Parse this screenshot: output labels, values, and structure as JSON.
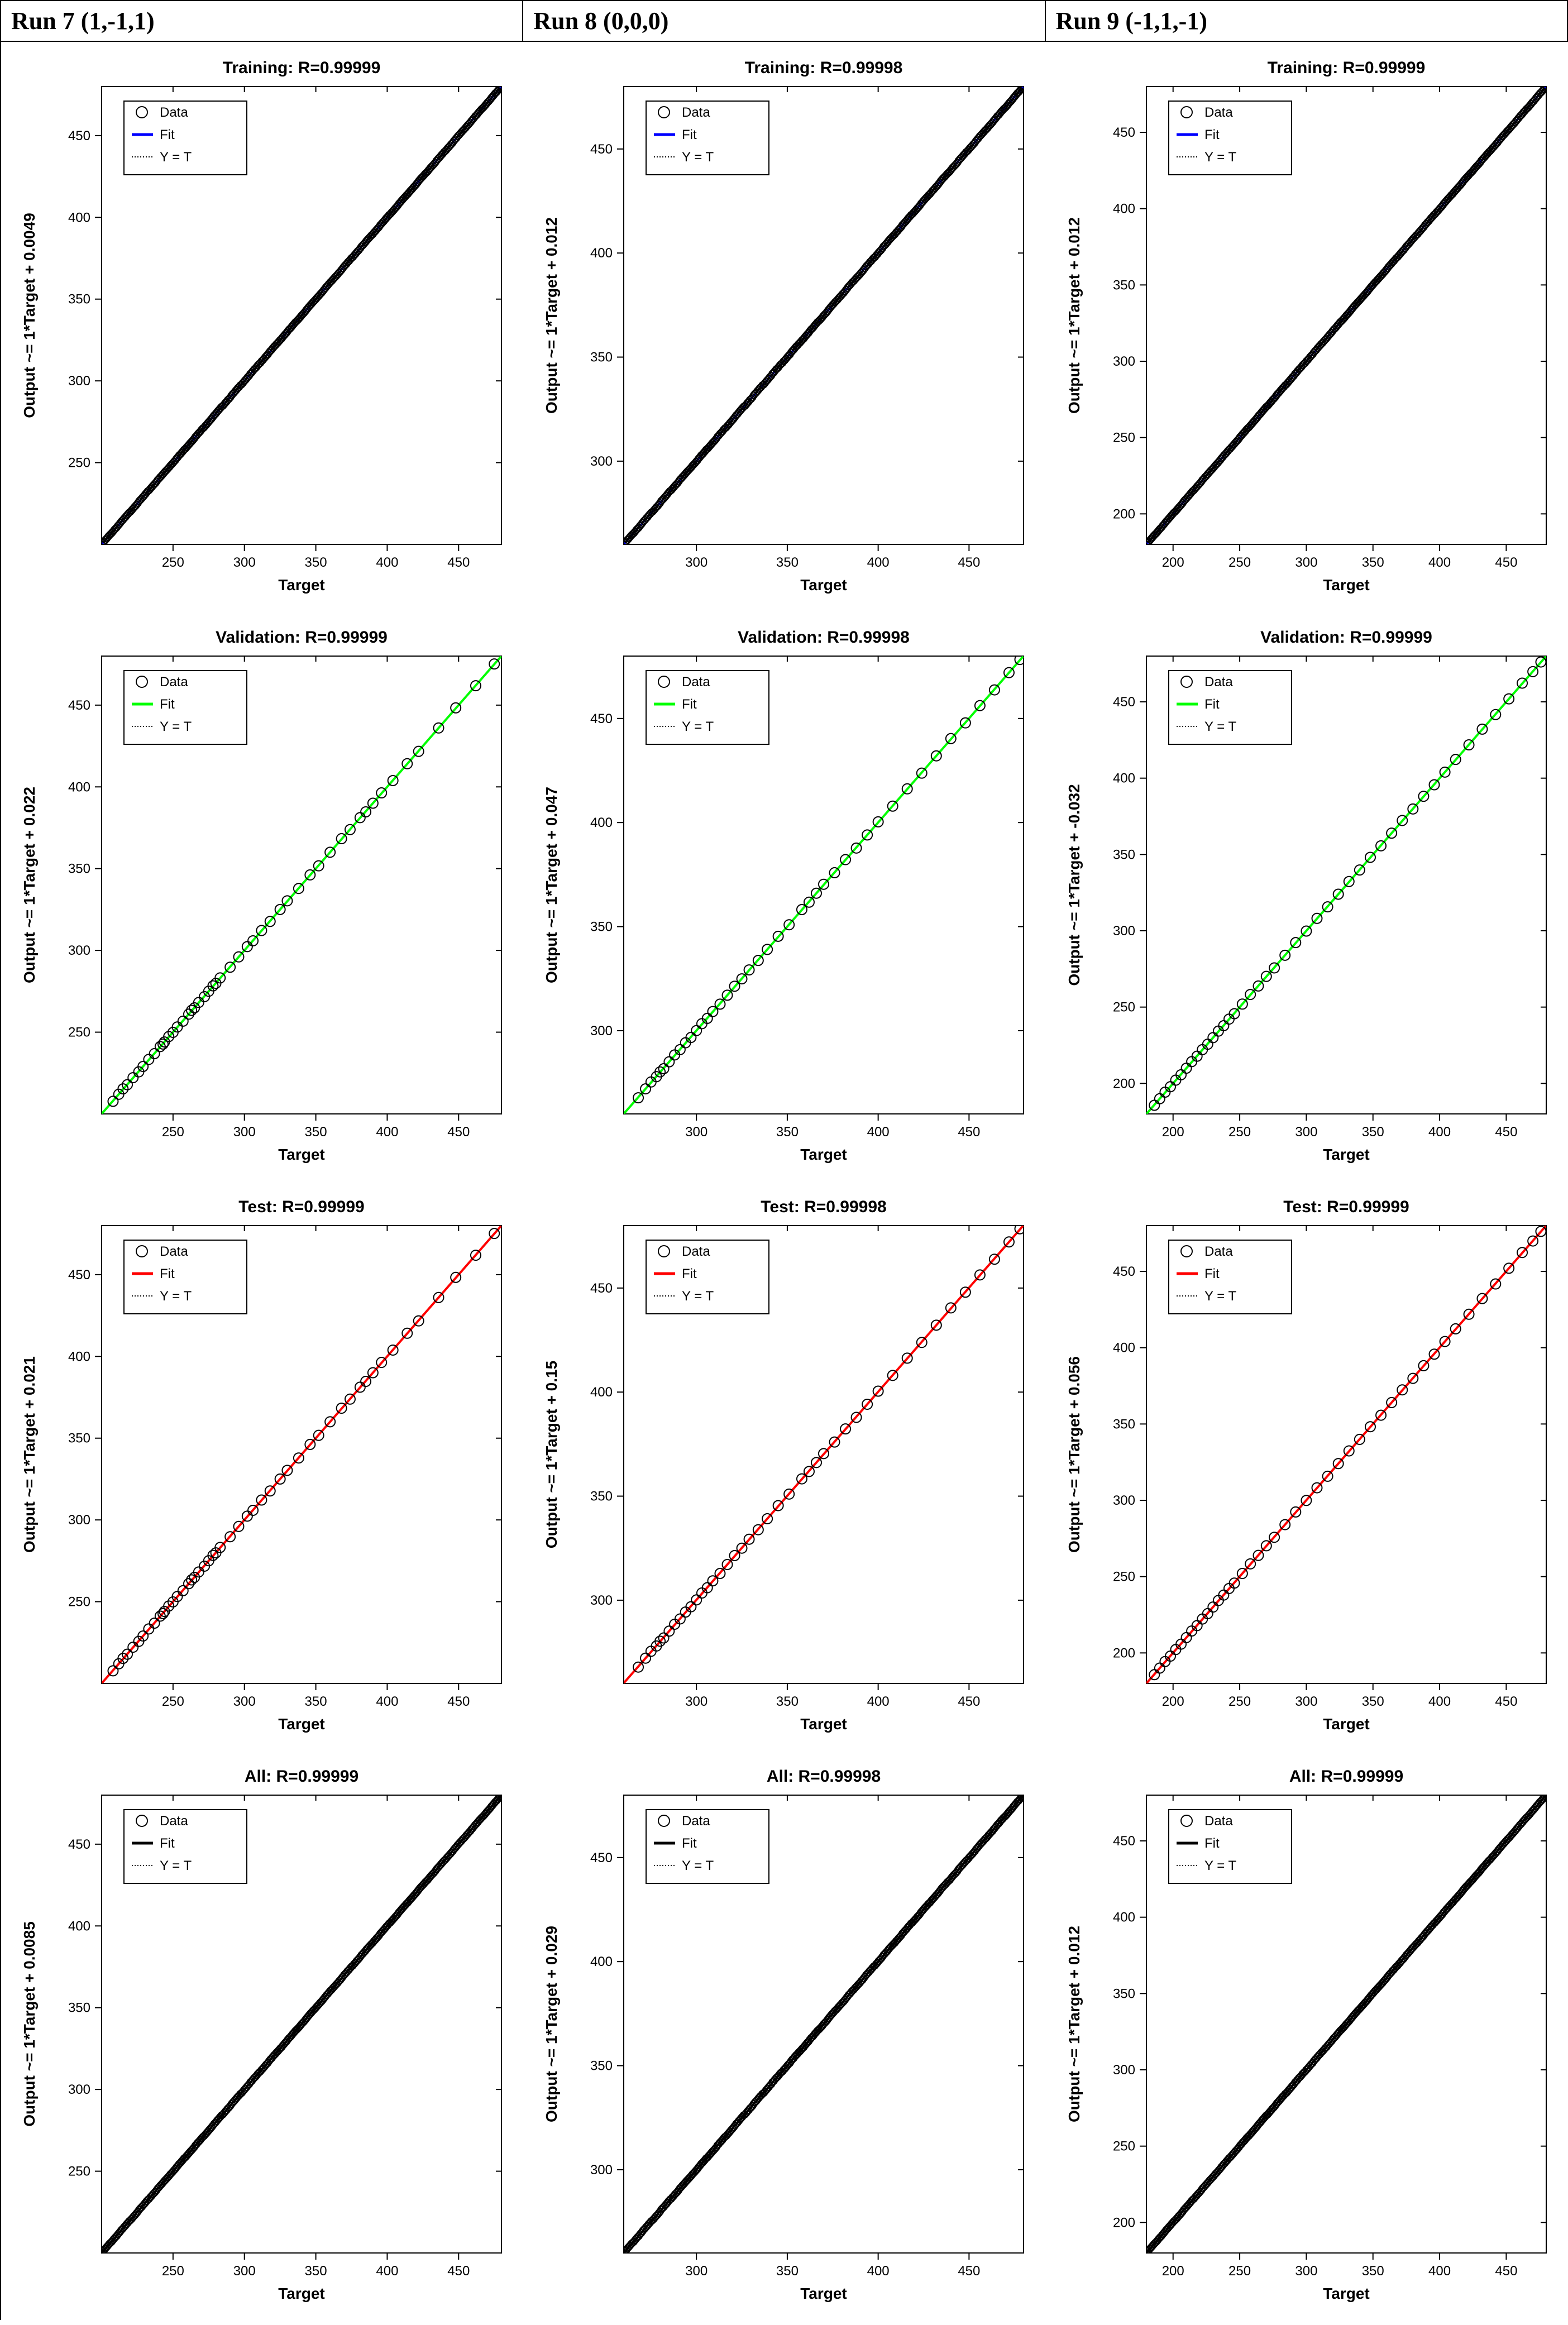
{
  "columns": [
    {
      "header": "Run 7 (1,-1,1)"
    },
    {
      "header": "Run 8 (0,0,0)"
    },
    {
      "header": "Run 9 (-1,1,-1)"
    }
  ],
  "legend": {
    "items": [
      "Data",
      "Fit",
      "Y = T"
    ],
    "box_stroke": "#000000",
    "box_fill": "#ffffff",
    "data_marker": "circle",
    "yt_dash": "2,3"
  },
  "global": {
    "xlabel": "Target",
    "axis_font_size": 28,
    "tick_font_size": 24,
    "title_font_size": 30,
    "legend_font_size": 24,
    "plot_bg": "#ffffff",
    "plot_border": "#000000",
    "marker_stroke": "#000000",
    "marker_fill": "none",
    "yt_line_color": "#000000",
    "yt_dash": "3,4",
    "fit_line_width": 4,
    "marker_r_sparse": 9,
    "marker_r_dense": 6
  },
  "row_meta": [
    {
      "kind": "Training",
      "fit_color": "#0000ff",
      "density": "dense"
    },
    {
      "kind": "Validation",
      "fit_color": "#00ff00",
      "density": "sparse"
    },
    {
      "kind": "Test",
      "fit_color": "#ff0000",
      "density": "sparse"
    },
    {
      "kind": "All",
      "fit_color": "#000000",
      "density": "dense"
    }
  ],
  "axes": {
    "col0": {
      "xlim": [
        200,
        480
      ],
      "ylim": [
        200,
        480
      ],
      "xticks": [
        250,
        300,
        350,
        400,
        450
      ],
      "yticks": [
        250,
        300,
        350,
        400,
        450
      ]
    },
    "col1": {
      "xlim": [
        260,
        480
      ],
      "ylim": [
        260,
        480
      ],
      "xticks": [
        300,
        350,
        400,
        450
      ],
      "yticks": [
        300,
        350,
        400,
        450
      ]
    },
    "col2": {
      "xlim": [
        180,
        480
      ],
      "ylim": [
        180,
        480
      ],
      "xticks": [
        200,
        250,
        300,
        350,
        400,
        450
      ],
      "yticks": [
        200,
        250,
        300,
        350,
        400,
        450
      ]
    }
  },
  "cells": [
    [
      {
        "title": "Training: R=0.99999",
        "ylabel": "Output ~= 1*Target + 0.0049",
        "intercept": 0.0049
      },
      {
        "title": "Training: R=0.99998",
        "ylabel": "Output ~= 1*Target + 0.012",
        "intercept": 0.012
      },
      {
        "title": "Training: R=0.99999",
        "ylabel": "Output ~= 1*Target + 0.012",
        "intercept": 0.012
      }
    ],
    [
      {
        "title": "Validation: R=0.99999",
        "ylabel": "Output ~= 1*Target + 0.022",
        "intercept": 0.022
      },
      {
        "title": "Validation: R=0.99998",
        "ylabel": "Output ~= 1*Target + 0.047",
        "intercept": 0.047
      },
      {
        "title": "Validation: R=0.99999",
        "ylabel": "Output ~= 1*Target + -0.032",
        "intercept": -0.032
      }
    ],
    [
      {
        "title": "Test: R=0.99999",
        "ylabel": "Output ~= 1*Target + 0.021",
        "intercept": 0.021
      },
      {
        "title": "Test: R=0.99998",
        "ylabel": "Output ~= 1*Target + 0.15",
        "intercept": 0.15
      },
      {
        "title": "Test: R=0.99999",
        "ylabel": "Output ~= 1*Target + 0.056",
        "intercept": 0.056
      }
    ],
    [
      {
        "title": "All: R=0.99999",
        "ylabel": "Output ~= 1*Target + 0.0085",
        "intercept": 0.0085
      },
      {
        "title": "All: R=0.99998",
        "ylabel": "Output ~= 1*Target + 0.029",
        "intercept": 0.029
      },
      {
        "title": "All: R=0.99999",
        "ylabel": "Output ~= 1*Target + 0.012",
        "intercept": 0.012
      }
    ]
  ],
  "sparse_points": {
    "col0": [
      208,
      212,
      215,
      218,
      222,
      226,
      229,
      233,
      237,
      241,
      243,
      244,
      247,
      250,
      253,
      257,
      261,
      263,
      265,
      268,
      272,
      275,
      278,
      280,
      283,
      290,
      296,
      302,
      306,
      312,
      318,
      325,
      330,
      338,
      346,
      352,
      360,
      368,
      374,
      381,
      385,
      390,
      396,
      404,
      414,
      422,
      436,
      448,
      462,
      475
    ],
    "col1": [
      268,
      272,
      275,
      278,
      280,
      282,
      285,
      288,
      291,
      294,
      297,
      300,
      303,
      306,
      309,
      313,
      317,
      321,
      325,
      329,
      334,
      339,
      345,
      351,
      358,
      362,
      366,
      370,
      376,
      382,
      388,
      394,
      400,
      408,
      416,
      424,
      432,
      440,
      448,
      456,
      464,
      472,
      478
    ],
    "col2": [
      186,
      190,
      194,
      198,
      202,
      206,
      210,
      214,
      218,
      222,
      226,
      230,
      234,
      238,
      242,
      246,
      252,
      258,
      264,
      270,
      276,
      284,
      292,
      300,
      308,
      316,
      324,
      332,
      340,
      348,
      356,
      364,
      372,
      380,
      388,
      396,
      404,
      412,
      422,
      432,
      442,
      452,
      462,
      470,
      476
    ]
  }
}
